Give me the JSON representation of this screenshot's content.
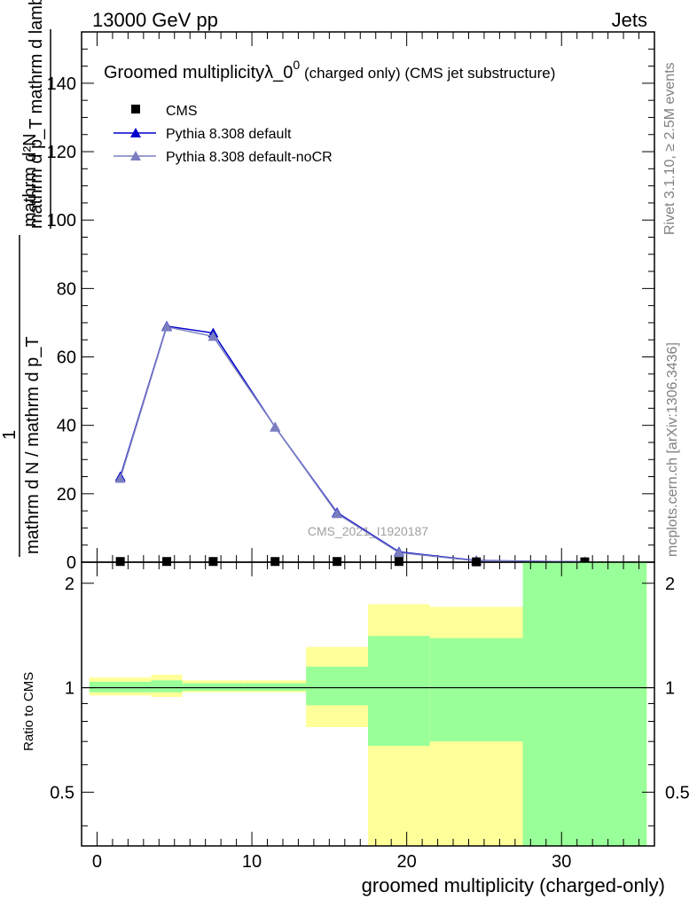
{
  "header": {
    "left": "13000 GeV pp",
    "right": "Jets"
  },
  "side_labels": {
    "rivet": "Rivet 3.1.10, ≥ 2.5M events",
    "mcplots": "mcplots.cern.ch [arXiv:1306.3436]"
  },
  "colors": {
    "cms": "#000000",
    "default": "#0000cc",
    "nocr": "#7b7fbf",
    "band_inner": "#99ff99",
    "band_outer": "#ffff99"
  },
  "chart_data": [
    {
      "type": "line",
      "title_main": "Groomed multiplicityλ_0",
      "title_sup": "0",
      "title_suffix": " (charged only) (CMS jet substructure)",
      "watermark": "CMS_2021_I1920187",
      "ylabel_num": "mathrm d²N",
      "ylabel_den": "mathrm d p_T mathrm d lambda",
      "ylabel_frac": "1",
      "ylabel_frac_den": "mathrm d N / mathrm d p_T",
      "xlim": [
        -1,
        36
      ],
      "ylim": [
        0,
        155
      ],
      "yticks": [
        0,
        20,
        40,
        60,
        80,
        100,
        120,
        140
      ],
      "legend_position": "top-left",
      "legend": [
        {
          "label": "CMS",
          "marker": "square"
        },
        {
          "label": "Pythia 8.308 default",
          "marker": "triangle"
        },
        {
          "label": "Pythia 8.308 default-noCR",
          "marker": "triangle"
        }
      ],
      "cms": {
        "x": [
          1.5,
          4.5,
          7.5,
          11.5,
          15.5,
          19.5,
          24.5,
          31.5
        ],
        "y": [
          0.2,
          0.2,
          0.2,
          0.2,
          0.2,
          0.2,
          0.1,
          0.1
        ]
      },
      "series": [
        {
          "name": "Pythia 8.308 default",
          "x": [
            1.5,
            4.5,
            7.5,
            11.5,
            15.5,
            19.5,
            24.5,
            31.5
          ],
          "y": [
            25.0,
            69.0,
            67.0,
            39.5,
            14.5,
            3.0,
            0.5,
            0.1
          ]
        },
        {
          "name": "Pythia 8.308 default-noCR",
          "x": [
            1.5,
            4.5,
            7.5,
            11.5,
            15.5,
            19.5,
            24.5,
            31.5
          ],
          "y": [
            24.5,
            68.8,
            66.0,
            39.5,
            14.2,
            2.8,
            0.4,
            0.1
          ]
        }
      ]
    },
    {
      "type": "area",
      "ylabel": "Ratio to CMS",
      "xlabel": "groomed multiplicity (charged-only)",
      "xlim": [
        -1,
        36
      ],
      "ylim": [
        0.35,
        2.3
      ],
      "yscale": "log",
      "xticks": [
        0,
        10,
        20,
        30
      ],
      "yticks": [
        "0.5",
        "1",
        "2"
      ],
      "bins": [
        {
          "lo": -0.5,
          "hi": 3.5,
          "inner": [
            0.97,
            1.04
          ],
          "outer": [
            0.95,
            1.07
          ]
        },
        {
          "lo": 3.5,
          "hi": 5.5,
          "inner": [
            0.97,
            1.05
          ],
          "outer": [
            0.94,
            1.09
          ]
        },
        {
          "lo": 5.5,
          "hi": 9.5,
          "inner": [
            0.98,
            1.03
          ],
          "outer": [
            0.97,
            1.05
          ]
        },
        {
          "lo": 9.5,
          "hi": 13.5,
          "inner": [
            0.98,
            1.03
          ],
          "outer": [
            0.97,
            1.05
          ]
        },
        {
          "lo": 13.5,
          "hi": 17.5,
          "inner": [
            0.89,
            1.15
          ],
          "outer": [
            0.77,
            1.31
          ]
        },
        {
          "lo": 17.5,
          "hi": 21.5,
          "inner": [
            0.68,
            1.41
          ],
          "outer": [
            0.35,
            1.74
          ]
        },
        {
          "lo": 21.5,
          "hi": 27.5,
          "inner": [
            0.7,
            1.39
          ],
          "outer": [
            0.35,
            1.71
          ]
        },
        {
          "lo": 27.5,
          "hi": 35.5,
          "inner": [
            0.35,
            2.3
          ],
          "outer": [
            0.35,
            2.3
          ]
        }
      ],
      "reference": 1
    }
  ]
}
